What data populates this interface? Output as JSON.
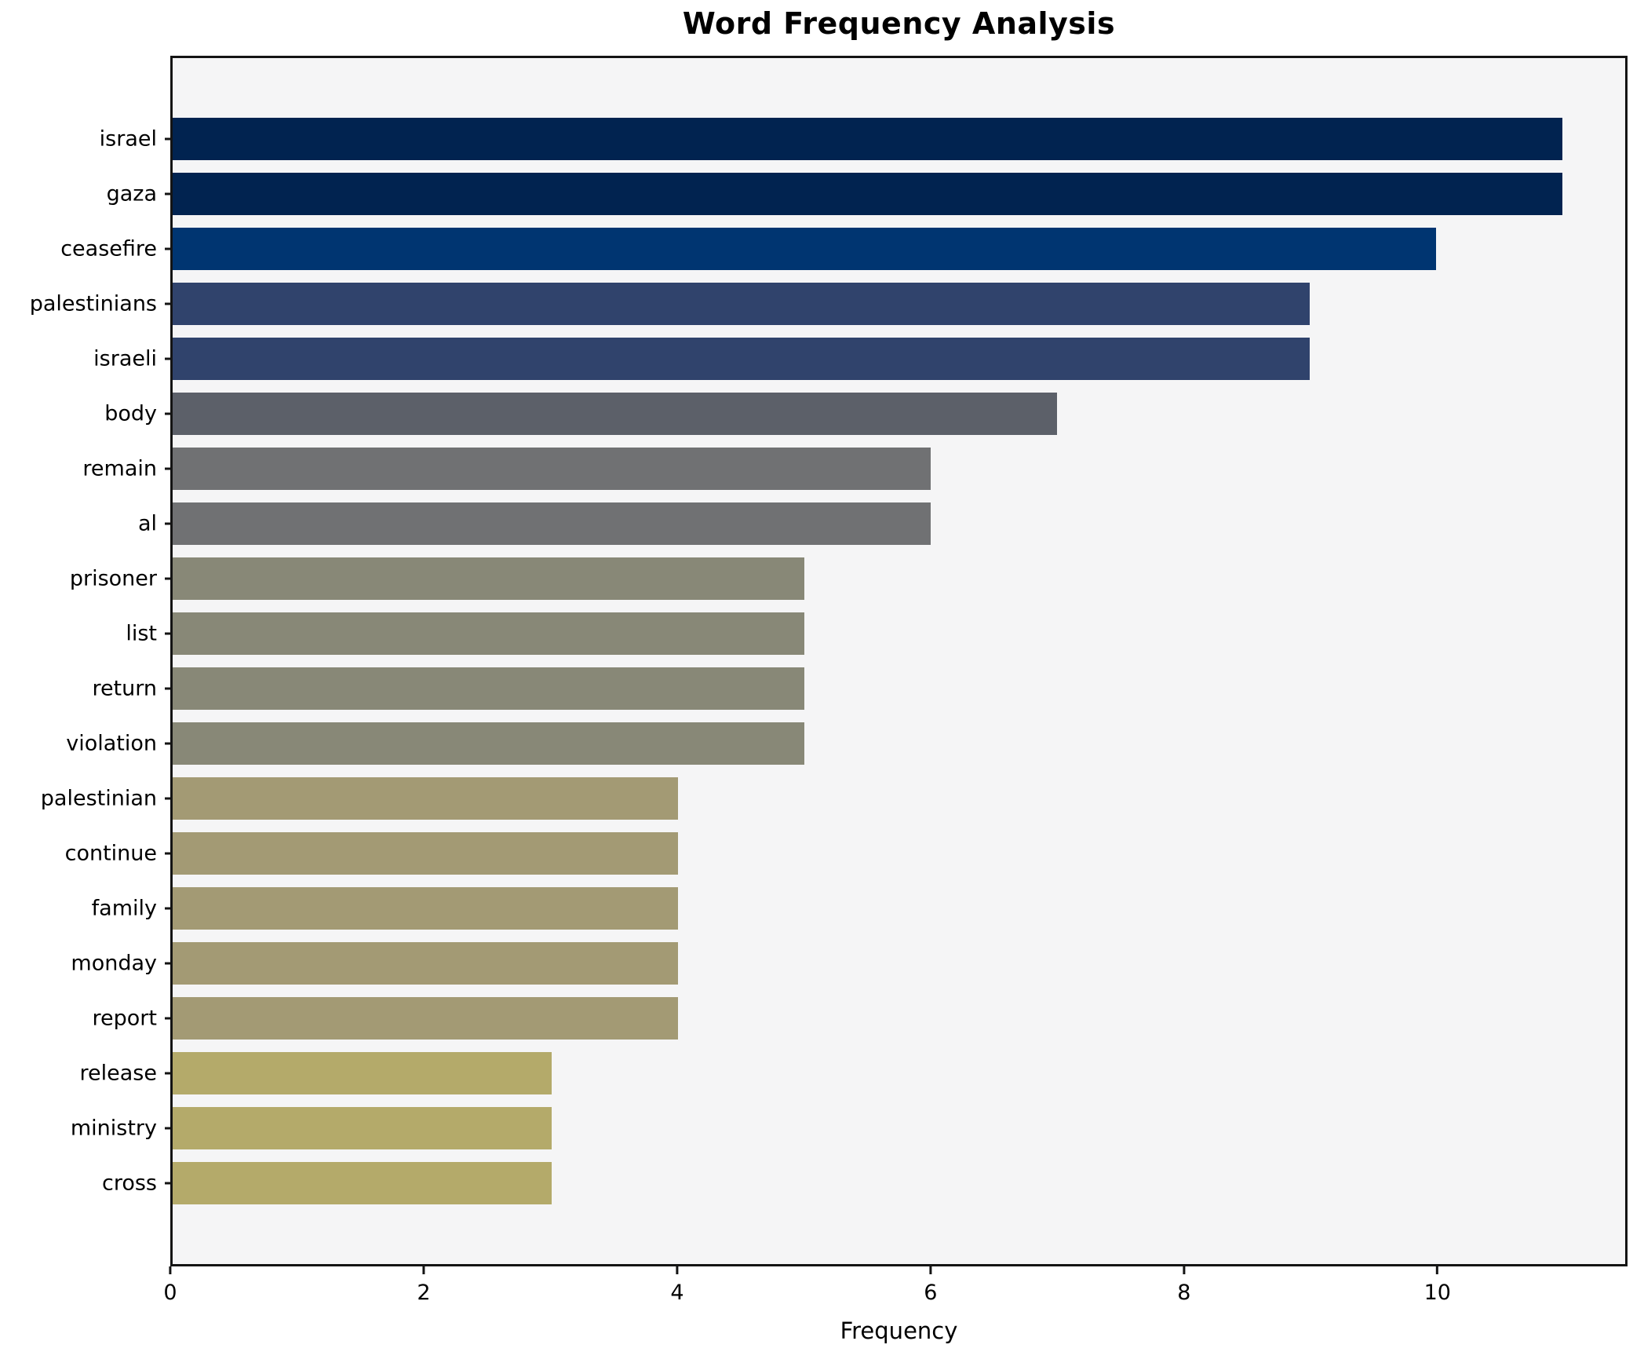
{
  "chart_data": {
    "type": "bar",
    "orientation": "horizontal",
    "title": "Word Frequency Analysis",
    "xlabel": "Frequency",
    "ylabel": "",
    "categories": [
      "israel",
      "gaza",
      "ceasefire",
      "palestinians",
      "israeli",
      "body",
      "remain",
      "al",
      "prisoner",
      "list",
      "return",
      "violation",
      "palestinian",
      "continue",
      "family",
      "monday",
      "report",
      "release",
      "ministry",
      "cross"
    ],
    "values": [
      11,
      11,
      10,
      9,
      9,
      7,
      6,
      6,
      5,
      5,
      5,
      5,
      4,
      4,
      4,
      4,
      4,
      3,
      3,
      3
    ],
    "bar_colors": [
      "#012350",
      "#012350",
      "#003571",
      "#30436c",
      "#30436c",
      "#5c6069",
      "#707173",
      "#707173",
      "#888877",
      "#888877",
      "#888877",
      "#888877",
      "#a39a74",
      "#a39a74",
      "#a39a74",
      "#a39a74",
      "#a39a74",
      "#b4aa6a",
      "#b4aa6a",
      "#b4aa6a"
    ],
    "xlim": [
      0,
      11.5
    ],
    "xticks": [
      0,
      2,
      4,
      6,
      8,
      10
    ],
    "grid": false,
    "legend": null,
    "plot_background": "#f5f5f6",
    "figure_background": "#ffffff",
    "spine_color": "#141414"
  }
}
